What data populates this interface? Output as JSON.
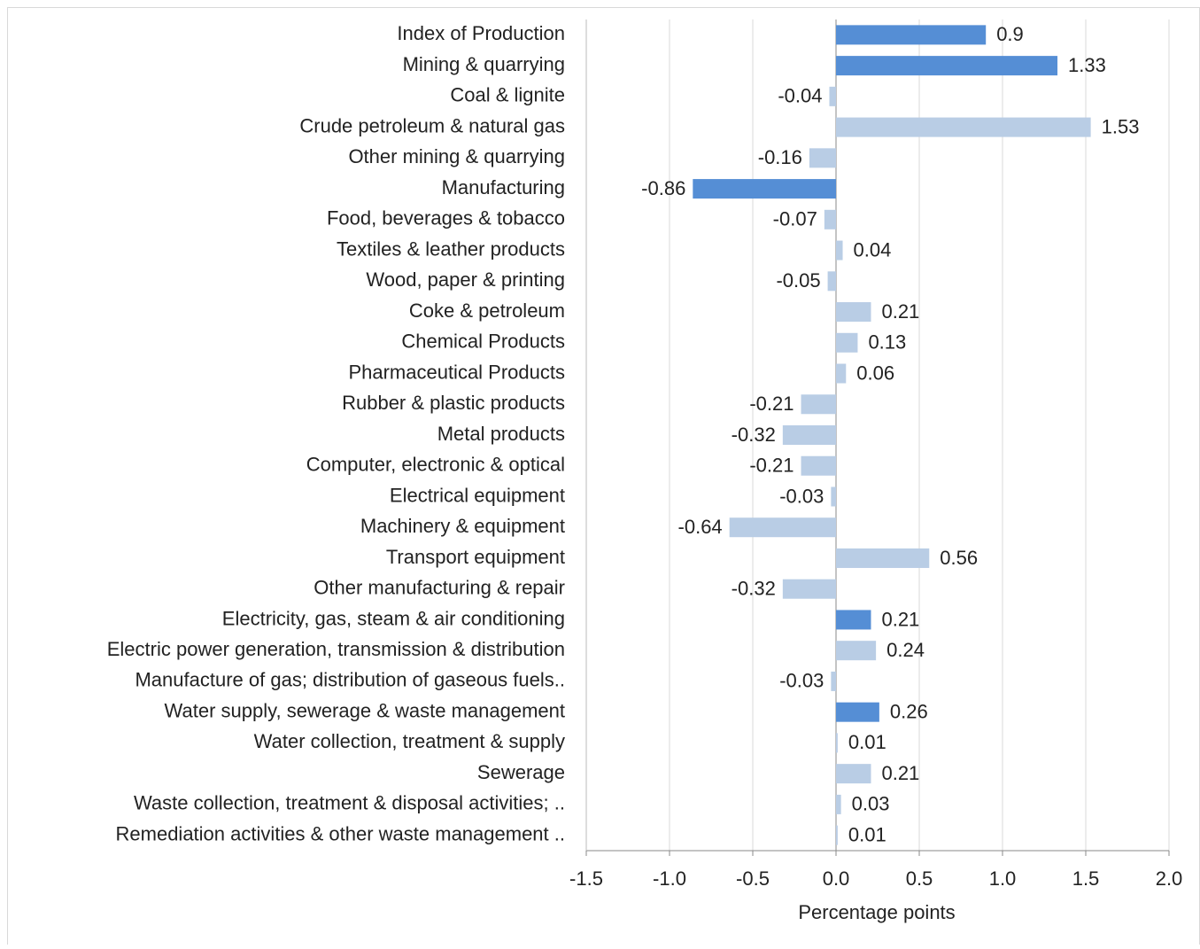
{
  "chart_data": {
    "type": "barh",
    "x_label": "Percentage points",
    "categories": [
      "Index of Production",
      "Mining & quarrying",
      "Coal & lignite",
      "Crude petroleum & natural gas",
      "Other mining & quarrying",
      "Manufacturing",
      "Food, beverages & tobacco",
      "Textiles & leather products",
      "Wood, paper & printing",
      "Coke & petroleum",
      "Chemical Products",
      "Pharmaceutical  Products",
      "Rubber & plastic products",
      "Metal products",
      "Computer, electronic & optical",
      "Electrical equipment",
      "Machinery & equipment",
      "Transport equipment",
      "Other manufacturing & repair",
      "Electricity, gas, steam & air conditioning",
      "Electric power generation, transmission & distribution",
      "Manufacture of gas; distribution of gaseous fuels..",
      "Water supply, sewerage & waste management",
      "Water collection, treatment & supply",
      "Sewerage",
      "Waste collection, treatment & disposal activities; ..",
      "Remediation activities & other waste management .."
    ],
    "values": [
      0.9,
      1.33,
      -0.04,
      1.53,
      -0.16,
      -0.86,
      -0.07,
      0.04,
      -0.05,
      0.21,
      0.13,
      0.06,
      -0.21,
      -0.32,
      -0.21,
      -0.03,
      -0.64,
      0.56,
      -0.32,
      0.21,
      0.24,
      -0.03,
      0.26,
      0.01,
      0.21,
      0.03,
      0.01
    ],
    "colors": [
      "#558ed5",
      "#558ed5",
      "#b9cde5",
      "#b9cde5",
      "#b9cde5",
      "#558ed5",
      "#b9cde5",
      "#b9cde5",
      "#b9cde5",
      "#b9cde5",
      "#b9cde5",
      "#b9cde5",
      "#b9cde5",
      "#b9cde5",
      "#b9cde5",
      "#b9cde5",
      "#b9cde5",
      "#b9cde5",
      "#b9cde5",
      "#558ed5",
      "#b9cde5",
      "#b9cde5",
      "#558ed5",
      "#b9cde5",
      "#b9cde5",
      "#b9cde5",
      "#b9cde5"
    ],
    "xlim": [
      -1.5,
      2.0
    ],
    "xticks": [
      -1.5,
      {
        "value": -1.0,
        "label": "-1.0"
      },
      -0.5,
      {
        "value": 0,
        "label": "0.0"
      },
      0.5,
      {
        "value": 1.0,
        "label": "1.0"
      },
      1.5,
      {
        "value": 2.0,
        "label": "2.0"
      }
    ],
    "grid": true
  }
}
